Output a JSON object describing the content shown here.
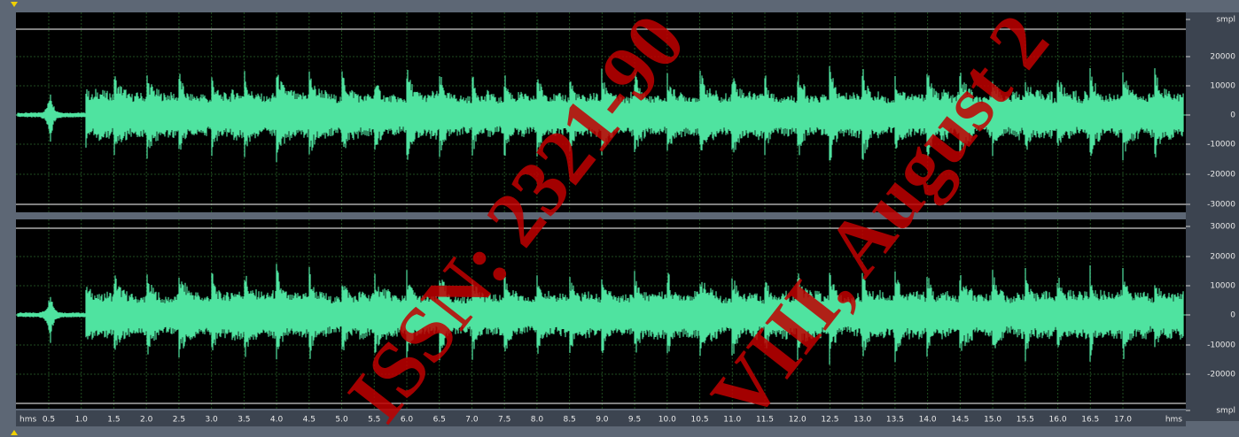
{
  "top_channel": {
    "scale_labels": [
      "smpl",
      "20000",
      "10000",
      "0",
      "-10000",
      "-20000",
      "-30000"
    ]
  },
  "bottom_channel": {
    "scale_labels": [
      "30000",
      "20000",
      "10000",
      "0",
      "-10000",
      "-20000",
      "smpl"
    ]
  },
  "time_ruler": {
    "unit_left": "hms",
    "labels": [
      "0.5",
      "1.0",
      "1.5",
      "2.0",
      "2.5",
      "3.0",
      "3.5",
      "4.0",
      "4.5",
      "5.0",
      "5.5",
      "6.0",
      "6.5",
      "7.0",
      "7.5",
      "8.0",
      "8.5",
      "9.0",
      "9.5",
      "10.0",
      "10.5",
      "11.0",
      "11.5",
      "12.0",
      "12.5",
      "13.0",
      "13.5",
      "14.0",
      "14.5",
      "15.0",
      "15.5",
      "16.0",
      "16.5",
      "17.0"
    ],
    "unit_right": "hms"
  },
  "watermark": [
    "ISSN: 2321-90",
    "VIII, August 2"
  ]
}
